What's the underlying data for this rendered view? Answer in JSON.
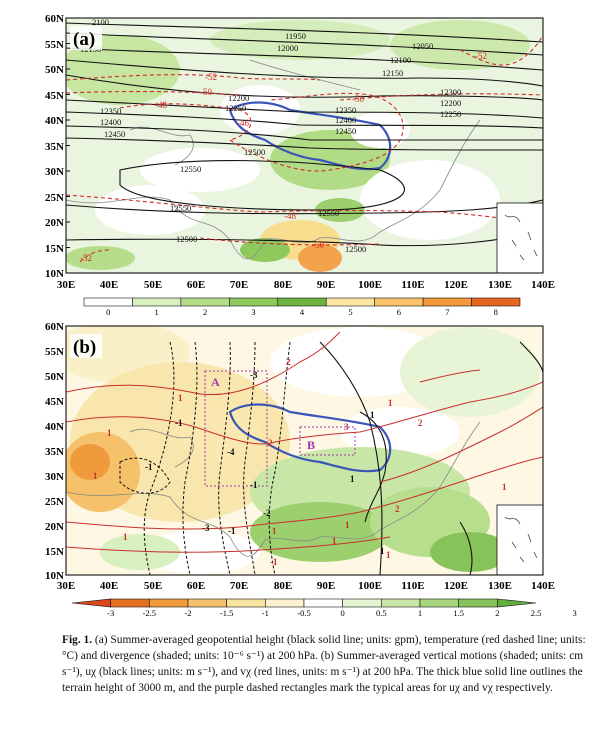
{
  "panels": [
    {
      "label": "(a)",
      "lat_labels": [
        "60N",
        "55N",
        "50N",
        "45N",
        "40N",
        "35N",
        "30N",
        "25N",
        "20N",
        "15N",
        "10N"
      ],
      "lon_labels": [
        "30E",
        "40E",
        "50E",
        "60E",
        "70E",
        "80E",
        "90E",
        "100E",
        "110E",
        "120E",
        "130E",
        "140E"
      ],
      "contour_labels": {
        "height": [
          "2100",
          "12150",
          "11950",
          "12000",
          "12050",
          "12100",
          "12150",
          "12200",
          "12250",
          "12300",
          "12200",
          "12250",
          "12350",
          "12400",
          "12450",
          "12350",
          "12400",
          "12450",
          "12500",
          "12550",
          "12550",
          "12550",
          "12500",
          "12500"
        ],
        "temperature": [
          "-52",
          "-50",
          "-48",
          "-46",
          "-50",
          "-48",
          "-50",
          "-52",
          "-52"
        ]
      },
      "colorbar": {
        "ticks": [
          "0",
          "1",
          "2",
          "3",
          "4",
          "5",
          "6",
          "7",
          "8"
        ],
        "colors": [
          "#ffffff",
          "#d8efbf",
          "#b5dd8a",
          "#8ec95e",
          "#6db341",
          "#fbe7a0",
          "#f9c46a",
          "#f39a3c",
          "#e5661f"
        ]
      }
    },
    {
      "label": "(b)",
      "lat_labels": [
        "60N",
        "55N",
        "50N",
        "45N",
        "40N",
        "35N",
        "30N",
        "25N",
        "20N",
        "15N",
        "10N"
      ],
      "lon_labels": [
        "30E",
        "40E",
        "50E",
        "60E",
        "70E",
        "80E",
        "90E",
        "100E",
        "110E",
        "120E",
        "130E",
        "140E"
      ],
      "box_labels": [
        "A",
        "B"
      ],
      "contour_labels": {
        "ux": [
          "-3",
          "-1",
          "-1",
          "-4",
          "-1",
          "-2",
          "-3",
          "-1",
          "1",
          "1",
          "1"
        ],
        "vx": [
          "2",
          "1",
          "1",
          "1",
          "2",
          "2",
          "3",
          "1",
          "1",
          "1",
          "1",
          "1",
          "2",
          "1",
          "-1",
          "1"
        ]
      },
      "colorbar": {
        "ticks": [
          "-3",
          "-2.5",
          "-2",
          "-1.5",
          "-1",
          "-0.5",
          "0",
          "0.5",
          "1",
          "1.5",
          "2",
          "2.5",
          "3"
        ],
        "colors": [
          "#d9471b",
          "#e7701f",
          "#f09a3a",
          "#f5c26b",
          "#f9e3a0",
          "#fdf3d0",
          "#ffffff",
          "#e5f4d2",
          "#c8e7a6",
          "#a8d67c",
          "#86c35a",
          "#64ae3c"
        ]
      }
    }
  ],
  "caption": {
    "figure_label": "Fig. 1.",
    "text": "(a) Summer-averaged geopotential height (black solid line; units: gpm), temperature (red dashed line; units: °C) and divergence (shaded; units: 10⁻⁶ s⁻¹) at 200 hPa. (b) Summer-averaged vertical motions (shaded; units: cm s⁻¹), uχ (black lines; units: m s⁻¹), and vχ (red lines, units: m s⁻¹) at 200 hPa. The thick blue solid line outlines the terrain height of 3000 m, and the purple dashed rectangles mark the typical areas for uχ and vχ respectively."
  }
}
